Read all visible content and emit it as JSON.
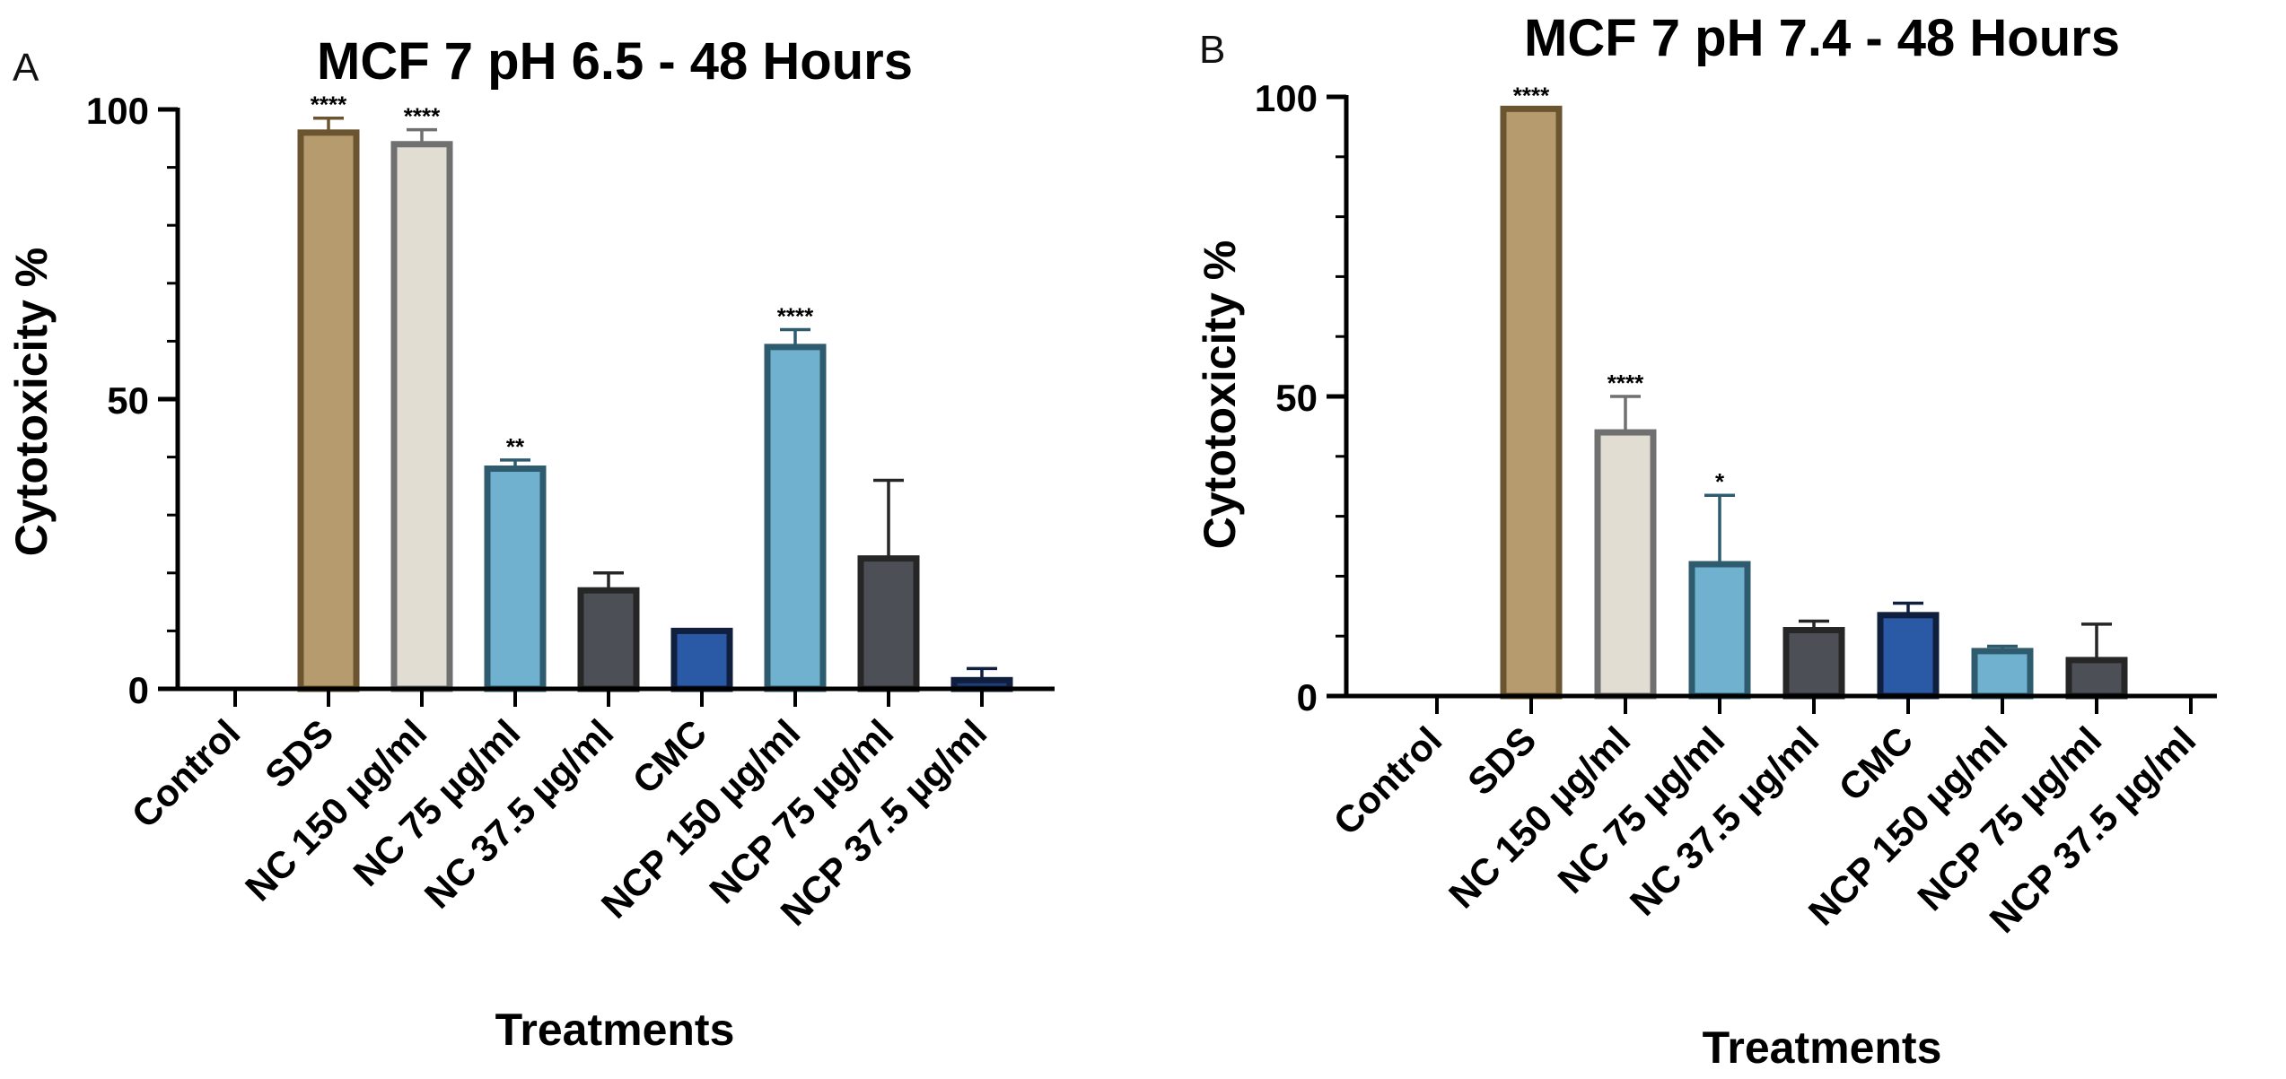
{
  "chart_data": [
    {
      "type": "bar",
      "panel": "A",
      "title": "MCF 7 pH 6.5 - 48 Hours",
      "xlabel": "Treatments",
      "ylabel": "Cytotoxicity %",
      "ylim": [
        0,
        100
      ],
      "yticks": [
        0,
        50,
        100
      ],
      "categories": [
        "Control",
        "SDS",
        "NC 150 µg/ml",
        "NC 75 µg/ml",
        "NC 37.5 µg/ml",
        "CMC",
        "NCP 150 µg/ml",
        "NCP 75 µg/ml",
        "NCP 37.5 µg/ml"
      ],
      "values": [
        0,
        96,
        94,
        38,
        17,
        10,
        59,
        22.5,
        1.5
      ],
      "errors": [
        0,
        2.5,
        2.5,
        1.5,
        3,
        0,
        3,
        13.5,
        2
      ],
      "significance": [
        "",
        "****",
        "****",
        "**",
        "",
        "",
        "****",
        "",
        ""
      ],
      "fill_colors": [
        "#ffffff",
        "#B59B6E",
        "#E2DDD3",
        "#6FB1CE",
        "#4C5056",
        "#2A5AA6",
        "#6FB1CE",
        "#4C5056",
        "#1E3F7A"
      ],
      "edge_colors": [
        "#000000",
        "#6B5530",
        "#707070",
        "#2E5C6E",
        "#262626",
        "#0F1F3D",
        "#2E5C6E",
        "#262626",
        "#0F1F3D"
      ]
    },
    {
      "type": "bar",
      "panel": "B",
      "title": "MCF 7 pH 7.4 - 48 Hours",
      "xlabel": "Treatments",
      "ylabel": "Cytotoxicity %",
      "ylim": [
        0,
        100
      ],
      "yticks": [
        0,
        50,
        100
      ],
      "categories": [
        "Control",
        "SDS",
        "NC 150 µg/ml",
        "NC 75 µg/ml",
        "NC 37.5 µg/ml",
        "CMC",
        "NCP 150 µg/ml",
        "NCP 75 µg/ml",
        "NCP 37.5 µg/ml"
      ],
      "values": [
        0,
        98,
        44,
        22,
        11,
        13.5,
        7.5,
        6,
        0
      ],
      "errors": [
        0,
        0,
        6,
        11.5,
        1.5,
        2,
        0.8,
        6,
        0
      ],
      "significance": [
        "",
        "****",
        "****",
        "*",
        "",
        "",
        "",
        "",
        ""
      ],
      "fill_colors": [
        "#ffffff",
        "#B59B6E",
        "#E2DDD3",
        "#6FB1CE",
        "#4C5056",
        "#2A5AA6",
        "#6FB1CE",
        "#4C5056",
        "#1E3F7A"
      ],
      "edge_colors": [
        "#000000",
        "#6B5530",
        "#707070",
        "#2E5C6E",
        "#262626",
        "#0F1F3D",
        "#2E5C6E",
        "#262626",
        "#0F1F3D"
      ]
    }
  ]
}
